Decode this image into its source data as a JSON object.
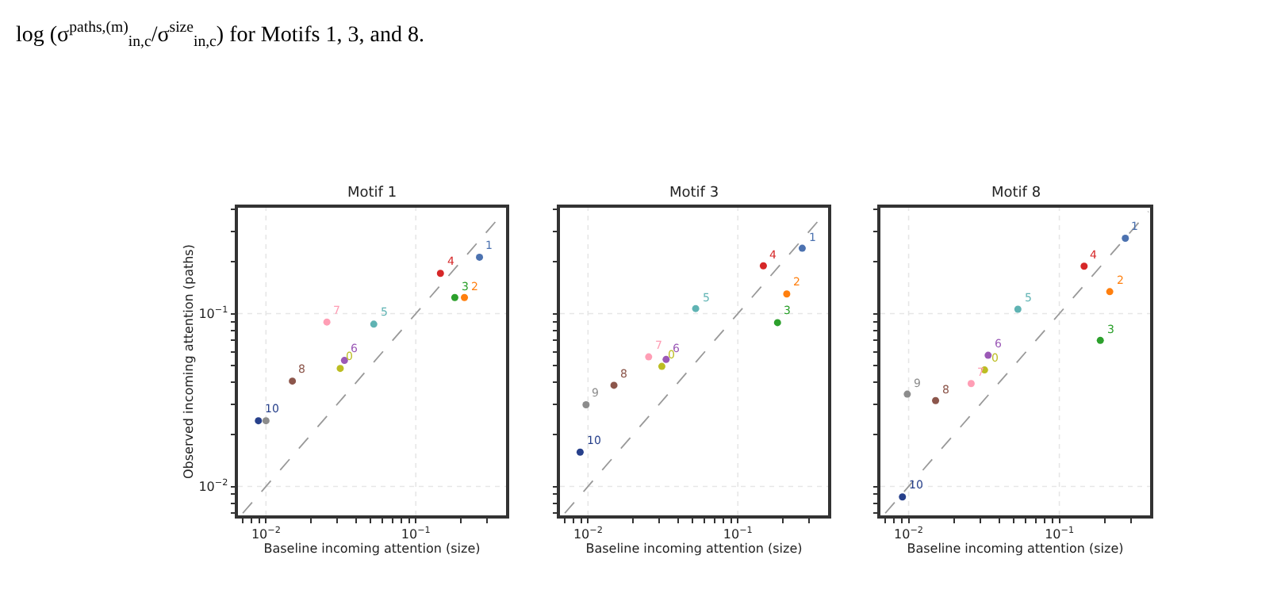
{
  "chart_data": [
    {
      "type": "scatter",
      "title": "Motif 1",
      "xlabel": "Baseline incoming attention (size)",
      "ylabel": "Observed incoming attention (paths)",
      "log": "xy",
      "grid": true,
      "marker": "circle",
      "annotations": [
        "log (σ$^{paths,(m)}$$_{in,c}$/σ$^{size}$$_{in,c}$) for Motifs 1, 3, and 8.",
        {
          "text": "0",
          "x": 0.0313,
          "y": 0.0482
        },
        {
          "text": "1",
          "x": 0.266,
          "y": 0.212
        },
        {
          "text": "2",
          "x": 0.211,
          "y": 0.124
        },
        {
          "text": "3",
          "x": 0.182,
          "y": 0.124
        },
        {
          "text": "4",
          "x": 0.146,
          "y": 0.171
        },
        {
          "text": "5",
          "x": 0.0524,
          "y": 0.0869
        },
        {
          "text": "6",
          "x": 0.0334,
          "y": 0.0536
        },
        {
          "text": "7",
          "x": 0.0255,
          "y": 0.0894
        },
        {
          "text": "8",
          "x": 0.015,
          "y": 0.0407
        },
        {
          "text": "10",
          "x": 0.0089,
          "y": 0.024
        }
      ],
      "xlim": [
        0.0065,
        0.4
      ],
      "ylim": [
        0.0068,
        0.41
      ],
      "xticks": [
        {
          "value": 0.007,
          "label": null
        },
        {
          "value": 0.008,
          "label": null
        },
        {
          "value": 0.009,
          "label": null
        },
        {
          "value": 0.01,
          "label": "10$^{−2}$"
        },
        {
          "value": 0.02,
          "label": null
        },
        {
          "value": 0.03,
          "label": null
        },
        {
          "value": 0.04,
          "label": null
        },
        {
          "value": 0.05,
          "label": null
        },
        {
          "value": 0.06,
          "label": null
        },
        {
          "value": 0.07,
          "label": null
        },
        {
          "value": 0.08,
          "label": null
        },
        {
          "value": 0.09,
          "label": null
        },
        {
          "value": 0.1,
          "label": "10$^{−1}$"
        },
        {
          "value": 0.2,
          "label": null
        },
        {
          "value": 0.3,
          "label": null
        }
      ],
      "yticks": [
        {
          "value": 0.007,
          "label": null
        },
        {
          "value": 0.008,
          "label": null
        },
        {
          "value": 0.009,
          "label": null
        },
        {
          "value": 0.01,
          "label": "10$^{−2}$"
        },
        {
          "value": 0.02,
          "label": null
        },
        {
          "value": 0.03,
          "label": null
        },
        {
          "value": 0.04,
          "label": null
        },
        {
          "value": 0.05,
          "label": null
        },
        {
          "value": 0.06,
          "label": null
        },
        {
          "value": 0.07,
          "label": null
        },
        {
          "value": 0.08,
          "label": null
        },
        {
          "value": 0.09,
          "label": null
        },
        {
          "value": 0.1,
          "label": "10$^{−1}$"
        },
        {
          "value": 0.2,
          "label": null
        },
        {
          "value": 0.3,
          "label": null
        },
        {
          "value": 0.4,
          "label": null
        }
      ],
      "series": [
        {
          "type": "line",
          "line_style": "dashed",
          "marker": "none",
          "color": "#999999",
          "x": [
            0.007,
            0.39
          ],
          "values": [
            0.007,
            0.39
          ]
        },
        {
          "x": [
            0.0313,
            0.266,
            0.211,
            0.182,
            0.146,
            0.0524,
            0.0334,
            0.0255,
            0.015,
            0.01,
            0.0089
          ],
          "values": [
            0.0482,
            0.212,
            0.124,
            0.124,
            0.171,
            0.0869,
            0.0536,
            0.0894,
            0.0407,
            0.024,
            0.024
          ],
          "colors": [
            "#bcbd22",
            "#4c72b0",
            "#ff7f0e",
            "#2ca02c",
            "#d62728",
            "#5fb3b3",
            "#9b59b6",
            "#ff9eb5",
            "#8c564b",
            "#8c8c8c",
            "#27408b"
          ]
        }
      ]
    },
    {
      "type": "scatter",
      "title": "Motif 3",
      "xlabel": "Baseline incoming attention (size)",
      "log": "xy",
      "grid": true,
      "marker": "circle",
      "tick_labels": "x",
      "annotations": [
        {
          "text": "0",
          "x": 0.0311,
          "y": 0.0495
        },
        {
          "text": "1",
          "x": 0.269,
          "y": 0.239
        },
        {
          "text": "2",
          "x": 0.212,
          "y": 0.13
        },
        {
          "text": "3",
          "x": 0.184,
          "y": 0.0887
        },
        {
          "text": "4",
          "x": 0.148,
          "y": 0.189
        },
        {
          "text": "5",
          "x": 0.0523,
          "y": 0.107
        },
        {
          "text": "6",
          "x": 0.0332,
          "y": 0.0543
        },
        {
          "text": "7",
          "x": 0.0254,
          "y": 0.0562
        },
        {
          "text": "8",
          "x": 0.0149,
          "y": 0.0385
        },
        {
          "text": "9",
          "x": 0.0097,
          "y": 0.0297
        },
        {
          "text": "10",
          "x": 0.00886,
          "y": 0.0158
        }
      ],
      "xlim": [
        0.0065,
        0.4
      ],
      "ylim": [
        0.0068,
        0.41
      ],
      "xticks": [
        {
          "value": 0.007,
          "label": null
        },
        {
          "value": 0.008,
          "label": null
        },
        {
          "value": 0.009,
          "label": null
        },
        {
          "value": 0.01,
          "label": "10$^{−2}$"
        },
        {
          "value": 0.02,
          "label": null
        },
        {
          "value": 0.03,
          "label": null
        },
        {
          "value": 0.04,
          "label": null
        },
        {
          "value": 0.05,
          "label": null
        },
        {
          "value": 0.06,
          "label": null
        },
        {
          "value": 0.07,
          "label": null
        },
        {
          "value": 0.08,
          "label": null
        },
        {
          "value": 0.09,
          "label": null
        },
        {
          "value": 0.1,
          "label": "10$^{−1}$"
        },
        {
          "value": 0.2,
          "label": null
        },
        {
          "value": 0.3,
          "label": null
        }
      ],
      "yticks": [
        {
          "value": 0.007,
          "label": null
        },
        {
          "value": 0.008,
          "label": null
        },
        {
          "value": 0.009,
          "label": null
        },
        {
          "value": 0.01,
          "label": "10$^{−2}$"
        },
        {
          "value": 0.02,
          "label": null
        },
        {
          "value": 0.03,
          "label": null
        },
        {
          "value": 0.04,
          "label": null
        },
        {
          "value": 0.05,
          "label": null
        },
        {
          "value": 0.06,
          "label": null
        },
        {
          "value": 0.07,
          "label": null
        },
        {
          "value": 0.08,
          "label": null
        },
        {
          "value": 0.09,
          "label": null
        },
        {
          "value": 0.1,
          "label": "10$^{−1}$"
        },
        {
          "value": 0.2,
          "label": null
        },
        {
          "value": 0.3,
          "label": null
        },
        {
          "value": 0.4,
          "label": null
        }
      ],
      "series": [
        {
          "type": "line",
          "line_style": "dashed",
          "marker": "none",
          "color": "#999999",
          "x": [
            0.007,
            0.39
          ],
          "values": [
            0.007,
            0.39
          ]
        },
        {
          "x": [
            0.0311,
            0.269,
            0.212,
            0.184,
            0.148,
            0.0523,
            0.0332,
            0.0254,
            0.0149,
            0.0097,
            0.00886
          ],
          "values": [
            0.0495,
            0.239,
            0.13,
            0.0887,
            0.189,
            0.107,
            0.0543,
            0.0562,
            0.0385,
            0.0297,
            0.0158
          ],
          "colors": [
            "#bcbd22",
            "#4c72b0",
            "#ff7f0e",
            "#2ca02c",
            "#d62728",
            "#5fb3b3",
            "#9b59b6",
            "#ff9eb5",
            "#8c564b",
            "#8c8c8c",
            "#27408b"
          ]
        }
      ]
    },
    {
      "type": "scatter",
      "title": "Motif 8",
      "xlabel": "Baseline incoming attention (size)",
      "log": "xy",
      "grid": true,
      "marker": "circle",
      "tick_labels": "x",
      "annotations": [
        {
          "text": "0",
          "x": 0.0319,
          "y": 0.0472
        },
        {
          "text": "1",
          "x": 0.274,
          "y": 0.273
        },
        {
          "text": "2",
          "x": 0.216,
          "y": 0.134
        },
        {
          "text": "3",
          "x": 0.187,
          "y": 0.07
        },
        {
          "text": "4",
          "x": 0.146,
          "y": 0.188
        },
        {
          "text": "5",
          "x": 0.0531,
          "y": 0.106
        },
        {
          "text": "6",
          "x": 0.0337,
          "y": 0.0574
        },
        {
          "text": "7",
          "x": 0.026,
          "y": 0.0394
        },
        {
          "text": "8",
          "x": 0.0151,
          "y": 0.0314
        },
        {
          "text": "9",
          "x": 0.0098,
          "y": 0.0342
        },
        {
          "text": "10",
          "x": 0.0091,
          "y": 0.00869
        }
      ],
      "xlim": [
        0.0065,
        0.4
      ],
      "ylim": [
        0.0068,
        0.41
      ],
      "xticks": [
        {
          "value": 0.007,
          "label": null
        },
        {
          "value": 0.008,
          "label": null
        },
        {
          "value": 0.009,
          "label": null
        },
        {
          "value": 0.01,
          "label": "10$^{−2}$"
        },
        {
          "value": 0.02,
          "label": null
        },
        {
          "value": 0.03,
          "label": null
        },
        {
          "value": 0.04,
          "label": null
        },
        {
          "value": 0.05,
          "label": null
        },
        {
          "value": 0.06,
          "label": null
        },
        {
          "value": 0.07,
          "label": null
        },
        {
          "value": 0.08,
          "label": null
        },
        {
          "value": 0.09,
          "label": null
        },
        {
          "value": 0.1,
          "label": "10$^{−1}$"
        },
        {
          "value": 0.2,
          "label": null
        },
        {
          "value": 0.3,
          "label": null
        }
      ],
      "yticks": [
        {
          "value": 0.007,
          "label": null
        },
        {
          "value": 0.008,
          "label": null
        },
        {
          "value": 0.009,
          "label": null
        },
        {
          "value": 0.01,
          "label": "10$^{−2}$"
        },
        {
          "value": 0.02,
          "label": null
        },
        {
          "value": 0.03,
          "label": null
        },
        {
          "value": 0.04,
          "label": null
        },
        {
          "value": 0.05,
          "label": null
        },
        {
          "value": 0.06,
          "label": null
        },
        {
          "value": 0.07,
          "label": null
        },
        {
          "value": 0.08,
          "label": null
        },
        {
          "value": 0.09,
          "label": null
        },
        {
          "value": 0.1,
          "label": "10$^{−1}$"
        },
        {
          "value": 0.2,
          "label": null
        },
        {
          "value": 0.3,
          "label": null
        },
        {
          "value": 0.4,
          "label": null
        }
      ],
      "series": [
        {
          "type": "line",
          "line_style": "dashed",
          "marker": "none",
          "color": "#999999",
          "x": [
            0.007,
            0.39
          ],
          "values": [
            0.007,
            0.39
          ]
        },
        {
          "x": [
            0.0319,
            0.274,
            0.216,
            0.187,
            0.146,
            0.0531,
            0.0337,
            0.026,
            0.0151,
            0.0098,
            0.0091
          ],
          "values": [
            0.0472,
            0.273,
            0.134,
            0.07,
            0.188,
            0.106,
            0.0574,
            0.0394,
            0.0314,
            0.0342,
            0.00869
          ],
          "colors": [
            "#bcbd22",
            "#4c72b0",
            "#ff7f0e",
            "#2ca02c",
            "#d62728",
            "#5fb3b3",
            "#9b59b6",
            "#ff9eb5",
            "#8c564b",
            "#8c8c8c",
            "#27408b"
          ]
        }
      ]
    }
  ]
}
